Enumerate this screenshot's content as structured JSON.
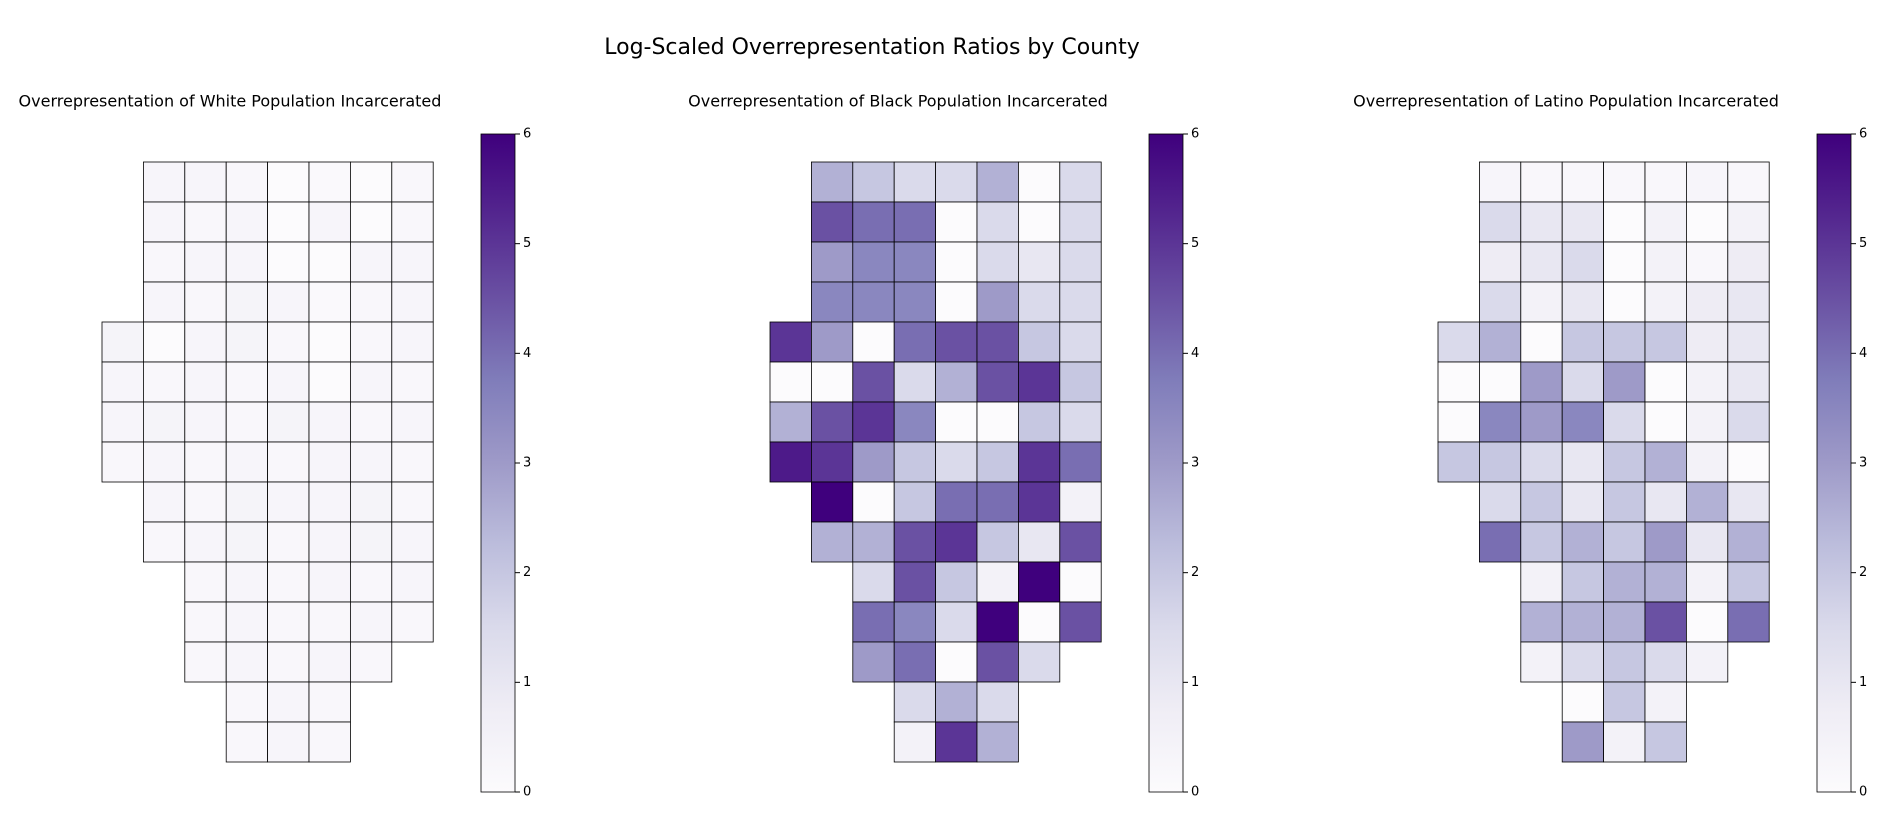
{
  "title": "Log-Scaled Overrepresentation Ratios by County",
  "chart_data": [
    {
      "type": "choropleth",
      "title": "Overrepresentation of White Population Incarcerated",
      "colormap": [
        "#fcfbfd",
        "#efedf5",
        "#dadaeb",
        "#bcbddc",
        "#9e9ac8",
        "#807dba",
        "#6a51a3",
        "#54278f",
        "#3f007d"
      ],
      "clim": [
        0,
        6
      ],
      "cticks": [
        0,
        1,
        2,
        3,
        4,
        5,
        6
      ],
      "values": [
        [
          0.3,
          0.3,
          0.2,
          0,
          0.1,
          0,
          0.2
        ],
        [
          0.3,
          0.2,
          0.3,
          0,
          0.3,
          0,
          0.2
        ],
        [
          0.2,
          0.3,
          0.3,
          0,
          0,
          0.3,
          0.3
        ],
        [
          0.3,
          0.2,
          0.4,
          0.3,
          0.1,
          0.2,
          0.3
        ],
        [
          0.4,
          0,
          0.3,
          0.4,
          0.2,
          0,
          0.2,
          0.3
        ],
        [
          0.3,
          0.2,
          0.3,
          0.2,
          0.3,
          0,
          0.3,
          0.2
        ],
        [
          0.3,
          0.4,
          0.3,
          0.2,
          0.4,
          0.3,
          0.2,
          0.3
        ],
        [
          0.2,
          0.3,
          0.2,
          0.3,
          0.2,
          0.3,
          0.3,
          0.2
        ],
        [
          0.3,
          0.2,
          0.4,
          0.3,
          0.3,
          0.4,
          0.2
        ],
        [
          0.2,
          0.3,
          0.4,
          0.2,
          0.3,
          0.4,
          0.3
        ],
        [
          0.2,
          0.3,
          0.2,
          0.3,
          0.2,
          0.3
        ],
        [
          0.2,
          0.3,
          0.2,
          0.2,
          0.3,
          0.2
        ],
        [
          0.2,
          0.3,
          0.2,
          0.3,
          0.2
        ],
        [
          0.2,
          0.3,
          0.2
        ],
        [
          0.2,
          0.3,
          0.2
        ]
      ]
    },
    {
      "type": "choropleth",
      "title": "Overrepresentation of Black Population Incarcerated",
      "colormap": [
        "#fcfbfd",
        "#efedf5",
        "#dadaeb",
        "#bcbddc",
        "#9e9ac8",
        "#807dba",
        "#6a51a3",
        "#54278f",
        "#3f007d"
      ],
      "clim": [
        0,
        6
      ],
      "cticks": [
        0,
        1,
        2,
        3,
        4,
        5,
        6
      ],
      "values": [
        [
          2.5,
          2.0,
          1.5,
          1.5,
          2.5,
          0,
          1.5
        ],
        [
          4.5,
          4.0,
          4.0,
          0,
          1.5,
          0,
          1.5
        ],
        [
          3.0,
          3.5,
          3.5,
          0,
          1.5,
          1.0,
          1.5
        ],
        [
          3.5,
          3.5,
          3.5,
          0,
          3.0,
          1.5,
          1.5
        ],
        [
          5.0,
          3.0,
          0,
          4.0,
          4.5,
          4.5,
          2.0,
          1.5
        ],
        [
          0,
          0,
          4.5,
          1.5,
          2.5,
          4.5,
          5.0,
          2.0
        ],
        [
          2.5,
          4.5,
          5.0,
          3.5,
          0,
          0,
          2.0,
          1.5
        ],
        [
          5.5,
          5.0,
          3.0,
          2.0,
          1.5,
          2.0,
          5.0,
          4.0
        ],
        [
          6.0,
          0,
          2.0,
          4.0,
          4.0,
          5.0,
          0.5
        ],
        [
          2.5,
          2.5,
          4.5,
          5.0,
          2.0,
          1.0,
          4.5
        ],
        [
          1.5,
          4.5,
          2.0,
          0.5,
          6.0,
          0
        ],
        [
          4.0,
          3.5,
          1.5,
          6.0,
          0,
          4.5
        ],
        [
          3.0,
          4.0,
          0,
          4.5,
          1.5
        ],
        [
          1.5,
          2.5,
          1.5
        ],
        [
          0.5,
          5.0,
          2.5
        ]
      ]
    },
    {
      "type": "choropleth",
      "title": "Overrepresentation of Latino Population Incarcerated",
      "colormap": [
        "#fcfbfd",
        "#efedf5",
        "#dadaeb",
        "#bcbddc",
        "#9e9ac8",
        "#807dba",
        "#6a51a3",
        "#54278f",
        "#3f007d"
      ],
      "clim": [
        0,
        6
      ],
      "cticks": [
        0,
        1,
        2,
        3,
        4,
        5,
        6
      ],
      "values": [
        [
          0.3,
          0.2,
          0.2,
          0.2,
          0.2,
          0.3,
          0.2
        ],
        [
          1.5,
          1.0,
          1.0,
          0,
          0.5,
          0,
          0.5
        ],
        [
          0.8,
          1.0,
          1.5,
          0,
          0.5,
          0.2,
          0.8
        ],
        [
          1.5,
          0.5,
          1.0,
          0,
          0.5,
          0.8,
          1.0
        ],
        [
          1.5,
          2.5,
          0,
          2.0,
          2.0,
          2.0,
          0.8,
          1.0
        ],
        [
          0,
          0,
          3.0,
          1.5,
          3.0,
          0,
          0.5,
          1.0
        ],
        [
          0,
          3.5,
          3.0,
          3.5,
          1.5,
          0,
          0.5,
          1.5
        ],
        [
          2.0,
          2.0,
          1.5,
          1.0,
          2.0,
          2.5,
          0.5,
          0
        ],
        [
          1.5,
          2.0,
          1.0,
          2.0,
          1.0,
          2.5,
          1.0
        ],
        [
          4.0,
          2.0,
          2.5,
          2.0,
          3.0,
          1.0,
          2.5
        ],
        [
          0.5,
          2.0,
          2.5,
          2.5,
          0.5,
          2.0
        ],
        [
          2.5,
          2.5,
          2.5,
          4.5,
          0,
          4.0
        ],
        [
          0.5,
          1.5,
          2.0,
          1.5,
          0.5
        ],
        [
          0,
          2.0,
          0.5
        ],
        [
          3.0,
          0.5,
          2.0
        ]
      ]
    }
  ]
}
